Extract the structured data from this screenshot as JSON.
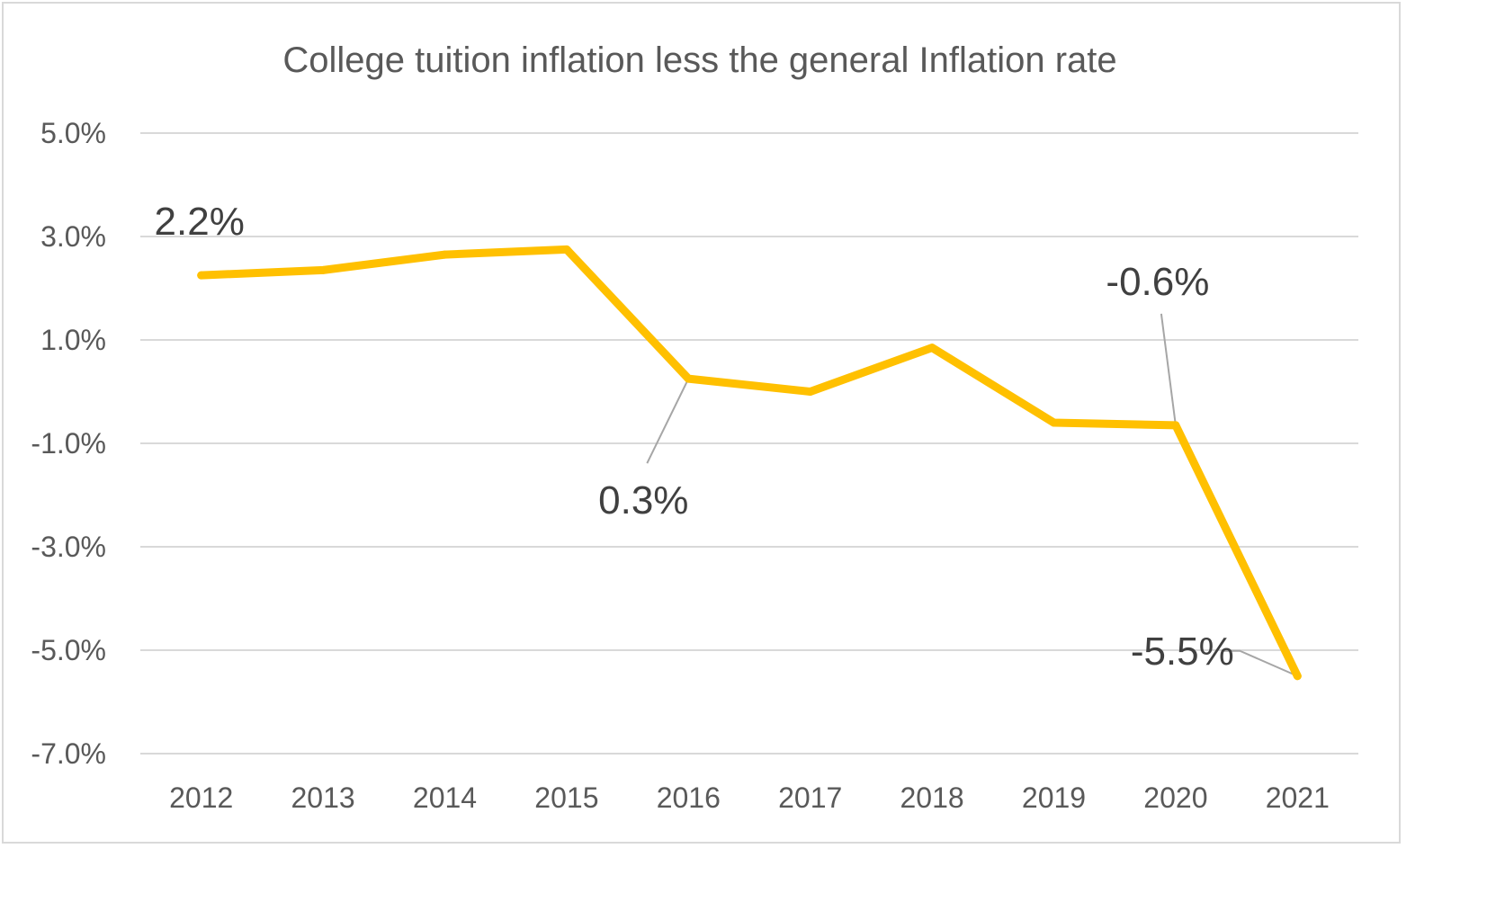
{
  "chart_data": {
    "type": "line",
    "title": "College tuition inflation less the general Inflation rate",
    "categories": [
      "2012",
      "2013",
      "2014",
      "2015",
      "2016",
      "2017",
      "2018",
      "2019",
      "2020",
      "2021"
    ],
    "series": [
      {
        "values": [
          2.25,
          2.35,
          2.65,
          2.75,
          0.25,
          0.0,
          0.85,
          -0.6,
          -0.65,
          -5.5
        ],
        "color": "#FFC000"
      }
    ],
    "yticks": [
      "5.0%",
      "3.0%",
      "1.0%",
      "-1.0%",
      "-3.0%",
      "-5.0%",
      "-7.0%"
    ],
    "ylim": [
      -7.0,
      5.0
    ],
    "grid": true,
    "legend": "none",
    "data_labels": [
      {
        "index": 0,
        "text": "2.2%"
      },
      {
        "index": 4,
        "text": "0.3%"
      },
      {
        "index": 8,
        "text": "-0.6%"
      },
      {
        "index": 9,
        "text": "-5.5%"
      }
    ]
  }
}
